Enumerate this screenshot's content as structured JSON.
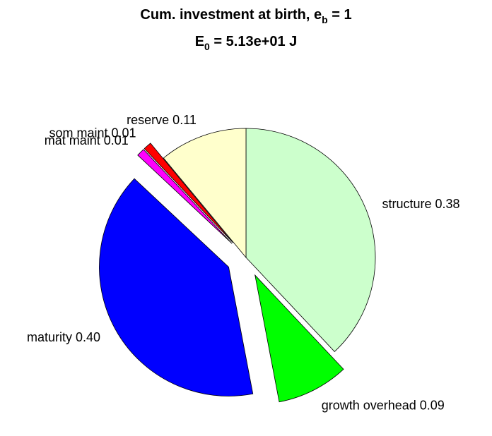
{
  "chart_data": {
    "type": "pie",
    "title": {
      "line1_main": "Cum. investment at birth, e",
      "line1_sub": "b",
      "line1_tail": " = 1",
      "line2_main": "E",
      "line2_sub": "0",
      "line2_tail": " = 5.13e+01 J"
    },
    "slices": [
      {
        "name": "structure",
        "value": 0.38,
        "label": "structure 0.38",
        "color": "#ccffcc",
        "exploded": false
      },
      {
        "name": "growth overhead",
        "value": 0.09,
        "label": "growth overhead 0.09",
        "color": "#00ff00",
        "exploded": true
      },
      {
        "name": "maturity",
        "value": 0.4,
        "label": "maturity 0.40",
        "color": "#0000ff",
        "exploded": true
      },
      {
        "name": "mat maint",
        "value": 0.01,
        "label": "mat maint 0.01",
        "color": "#ff00ff",
        "exploded": true
      },
      {
        "name": "som maint",
        "value": 0.01,
        "label": "som maint 0.01",
        "color": "#ff0000",
        "exploded": true
      },
      {
        "name": "reserve",
        "value": 0.11,
        "label": "reserve 0.11",
        "color": "#ffffcc",
        "exploded": false
      }
    ],
    "start": "12 o'clock",
    "direction": "clockwise"
  }
}
